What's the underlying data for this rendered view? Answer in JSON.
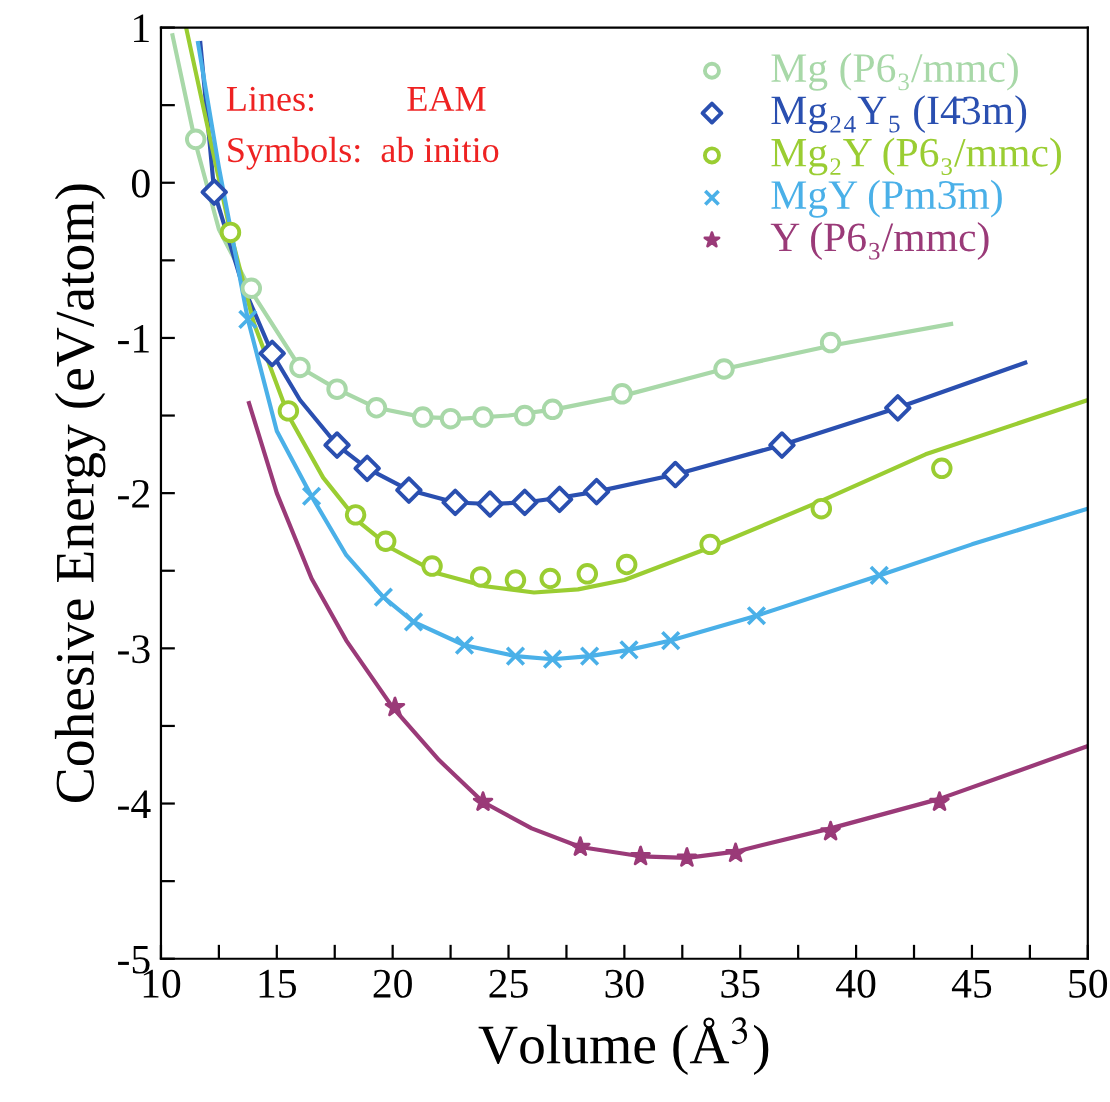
{
  "chart_data": {
    "type": "scatter",
    "xlabel": "Volume (Å$^{3}$)",
    "ylabel": "Cohesive Energy (eV/atom)",
    "xlim": [
      10,
      50
    ],
    "ylim": [
      -5,
      1
    ],
    "xticks": [
      10,
      {
        "value": 12.5,
        "label": null
      },
      15,
      {
        "value": 17.5,
        "label": null
      },
      20,
      {
        "value": 22.5,
        "label": null
      },
      25,
      {
        "value": 27.5,
        "label": null
      },
      30,
      {
        "value": 32.5,
        "label": null
      },
      35,
      {
        "value": 37.5,
        "label": null
      },
      40,
      {
        "value": 42.5,
        "label": null
      },
      45,
      {
        "value": 47.5,
        "label": null
      },
      50
    ],
    "yticks": [
      -5,
      {
        "value": -4.5,
        "label": null
      },
      -4,
      {
        "value": -3.5,
        "label": null
      },
      -3,
      {
        "value": -2.5,
        "label": null
      },
      -2,
      {
        "value": -1.5,
        "label": null
      },
      -1,
      {
        "value": -0.5,
        "label": null
      },
      0,
      {
        "value": 0.5,
        "label": null
      },
      1
    ],
    "grid": false,
    "legend": "top right",
    "annotations": [
      "Lines:          EAM",
      "Symbols:  ab initio"
    ],
    "series": [
      {
        "type": "line",
        "color": "#a8d8a8",
        "x": [
          10.5,
          11.5,
          12.5,
          13.9,
          16,
          17.6,
          19.3,
          21.3,
          23,
          25,
          27,
          30,
          34.3,
          38.9,
          44.1
        ],
        "values": [
          0.95,
          0.25,
          -0.3,
          -0.7,
          -1.19,
          -1.33,
          -1.45,
          -1.51,
          -1.52,
          -1.5,
          -1.46,
          -1.37,
          -1.2,
          -1.05,
          -0.91
        ]
      },
      {
        "type": "line",
        "color": "#2a4fb0",
        "x": [
          11.7,
          12.3,
          13.5,
          14.8,
          16,
          17.6,
          18.9,
          20.7,
          22.7,
          24.2,
          25.7,
          27.2,
          28.8,
          32.2,
          36.8,
          41.8,
          47.3
        ],
        "values": [
          0.9,
          -0.06,
          -0.65,
          -1.1,
          -1.4,
          -1.69,
          -1.84,
          -1.98,
          -2.06,
          -2.07,
          -2.06,
          -2.03,
          -1.99,
          -1.88,
          -1.69,
          -1.45,
          -1.16
        ]
      },
      {
        "type": "line",
        "color": "#9acd32",
        "x": [
          11.1,
          13,
          14,
          15.5,
          17,
          18.5,
          20,
          22,
          24,
          26.1,
          28,
          30,
          33.7,
          38.5,
          43,
          50
        ],
        "values": [
          0.99,
          -0.32,
          -0.9,
          -1.5,
          -1.9,
          -2.18,
          -2.36,
          -2.52,
          -2.6,
          -2.64,
          -2.62,
          -2.56,
          -2.35,
          -2.05,
          -1.75,
          -1.4
        ]
      },
      {
        "type": "line",
        "color": "#4ab0e8",
        "x": [
          11.6,
          12.5,
          13.75,
          15,
          16.5,
          18,
          19.6,
          20.9,
          23.1,
          25.3,
          26.9,
          28.5,
          30.2,
          32,
          35.7,
          41,
          45,
          50
        ],
        "values": [
          0.9,
          0.1,
          -0.88,
          -1.6,
          -2.02,
          -2.4,
          -2.67,
          -2.83,
          -2.98,
          -3.05,
          -3.07,
          -3.05,
          -3.01,
          -2.95,
          -2.79,
          -2.53,
          -2.33,
          -2.1
        ]
      },
      {
        "type": "line",
        "color": "#9a3a78",
        "x": [
          13.8,
          15,
          16.5,
          18,
          20,
          22,
          23.9,
          26,
          28.1,
          30.7,
          32.7,
          34.8,
          38.9,
          43.6,
          50
        ],
        "values": [
          -1.42,
          -2.0,
          -2.55,
          -2.95,
          -3.38,
          -3.72,
          -3.99,
          -4.16,
          -4.28,
          -4.34,
          -4.35,
          -4.31,
          -4.16,
          -3.97,
          -3.63
        ]
      },
      {
        "name": "Mg (P6₃/mmc)",
        "marker": "circle",
        "color": "#a8d8a8",
        "x": [
          11.5,
          13.9,
          16.0,
          17.6,
          19.3,
          21.3,
          22.5,
          23.9,
          25.7,
          26.9,
          29.9,
          34.3,
          38.9
        ],
        "values": [
          0.28,
          -0.68,
          -1.19,
          -1.33,
          -1.45,
          -1.51,
          -1.52,
          -1.51,
          -1.5,
          -1.46,
          -1.36,
          -1.2,
          -1.03
        ]
      },
      {
        "name": "Mg₂₄Y₅ (I4̄3m)",
        "marker": "diamond",
        "color": "#2a4fb0",
        "x": [
          12.3,
          14.8,
          17.6,
          18.9,
          20.7,
          22.7,
          24.2,
          25.7,
          27.2,
          28.8,
          32.2,
          36.8,
          41.8
        ],
        "values": [
          -0.06,
          -1.1,
          -1.69,
          -1.84,
          -1.98,
          -2.06,
          -2.07,
          -2.06,
          -2.04,
          -1.99,
          -1.88,
          -1.69,
          -1.45
        ]
      },
      {
        "name": "Mg₂Y (P6₃/mmc)",
        "marker": "circle",
        "color": "#9acd32",
        "x": [
          13.0,
          15.5,
          18.4,
          19.7,
          21.7,
          23.8,
          25.3,
          26.8,
          28.4,
          30.1,
          33.7,
          38.5,
          43.7
        ],
        "values": [
          -0.32,
          -1.47,
          -2.14,
          -2.31,
          -2.47,
          -2.54,
          -2.56,
          -2.55,
          -2.52,
          -2.46,
          -2.33,
          -2.1,
          -1.84
        ]
      },
      {
        "name": "MgY (Pm3̄m)",
        "marker": "cross",
        "color": "#4ab0e8",
        "x": [
          13.75,
          16.5,
          19.6,
          20.9,
          23.1,
          25.3,
          26.9,
          28.5,
          30.2,
          32.0,
          35.7,
          41.0
        ],
        "values": [
          -0.88,
          -2.02,
          -2.67,
          -2.83,
          -2.98,
          -3.05,
          -3.07,
          -3.05,
          -3.01,
          -2.95,
          -2.79,
          -2.53
        ]
      },
      {
        "name": "Y (P6₃/mmc)",
        "marker": "star",
        "color": "#9a3a78",
        "x": [
          20.1,
          23.9,
          28.1,
          30.7,
          32.7,
          34.8,
          38.9,
          43.6
        ],
        "values": [
          -3.38,
          -3.99,
          -4.28,
          -4.34,
          -4.35,
          -4.32,
          -4.18,
          -3.99
        ]
      }
    ]
  }
}
